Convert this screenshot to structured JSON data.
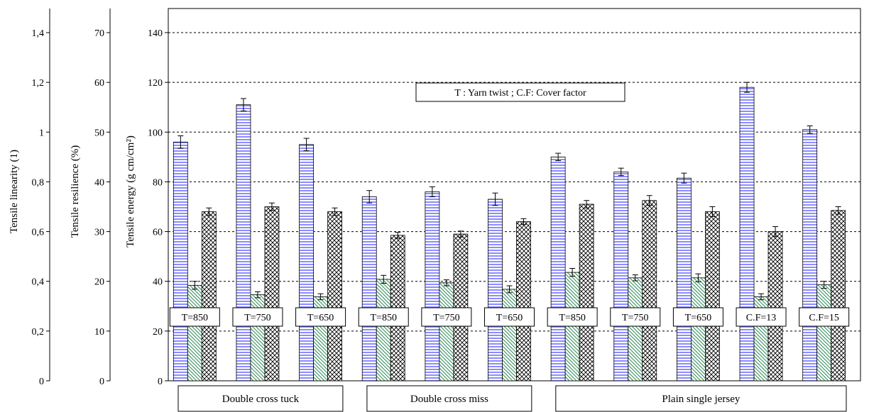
{
  "chart_data": {
    "type": "bar",
    "annotation": "T : Yarn twist  ; C.F: Cover factor",
    "axes": [
      {
        "id": "linearity",
        "label": "Tensile linearity (1)",
        "range": [
          0,
          1.6
        ],
        "ticks": [
          "0",
          "0,2",
          "0,4",
          "0,6",
          "0,8",
          "1",
          "1,2",
          "1,4"
        ]
      },
      {
        "id": "resilience",
        "label": "Tensile resilience (%)",
        "range": [
          0,
          80
        ],
        "ticks": [
          "0",
          "10",
          "20",
          "30",
          "40",
          "50",
          "60",
          "70"
        ]
      },
      {
        "id": "energy",
        "label": "Tensile energy (g cm/cm²)",
        "range": [
          0,
          160
        ],
        "ticks": [
          "0",
          "20",
          "40",
          "60",
          "80",
          "100",
          "120",
          "140"
        ]
      }
    ],
    "groups": [
      {
        "label": "Double cross tuck",
        "from": 0,
        "to": 2
      },
      {
        "label": "Double cross miss",
        "from": 3,
        "to": 5
      },
      {
        "label": "Plain single jersey",
        "from": 6,
        "to": 10
      }
    ],
    "categories": [
      "T=850",
      "T=750",
      "T=650",
      "T=850",
      "T=750",
      "T=650",
      "T=850",
      "T=750",
      "T=650",
      "C.F=13",
      "C.F=15"
    ],
    "series": [
      {
        "id": "energy",
        "axis": "energy",
        "values": [
          96,
          111,
          95,
          74,
          76,
          73,
          90,
          84,
          81.5,
          118,
          101
        ],
        "errors": [
          2.5,
          2.5,
          2.5,
          2.5,
          2,
          2.5,
          1.5,
          1.5,
          2,
          2,
          1.5
        ]
      },
      {
        "id": "resilience",
        "axis": "resilience",
        "values": [
          19.2,
          17.3,
          16.9,
          20.4,
          19.7,
          18.4,
          21.8,
          20.7,
          20.7,
          16.9,
          19.3
        ],
        "errors": [
          0.8,
          0.6,
          0.6,
          0.8,
          0.6,
          0.7,
          0.8,
          0.6,
          0.8,
          0.6,
          0.7
        ]
      },
      {
        "id": "linearity",
        "axis": "linearity",
        "values": [
          0.68,
          0.7,
          0.68,
          0.585,
          0.59,
          0.64,
          0.71,
          0.725,
          0.68,
          0.6,
          0.685
        ],
        "errors": [
          0.015,
          0.015,
          0.015,
          0.012,
          0.012,
          0.012,
          0.015,
          0.02,
          0.02,
          0.02,
          0.015
        ]
      }
    ],
    "colors": {
      "energy_fill": "#8080ff",
      "resilience_fill": "#2e8b57",
      "linearity_fill": "#000000",
      "grid": "#000000"
    },
    "grid": true
  }
}
